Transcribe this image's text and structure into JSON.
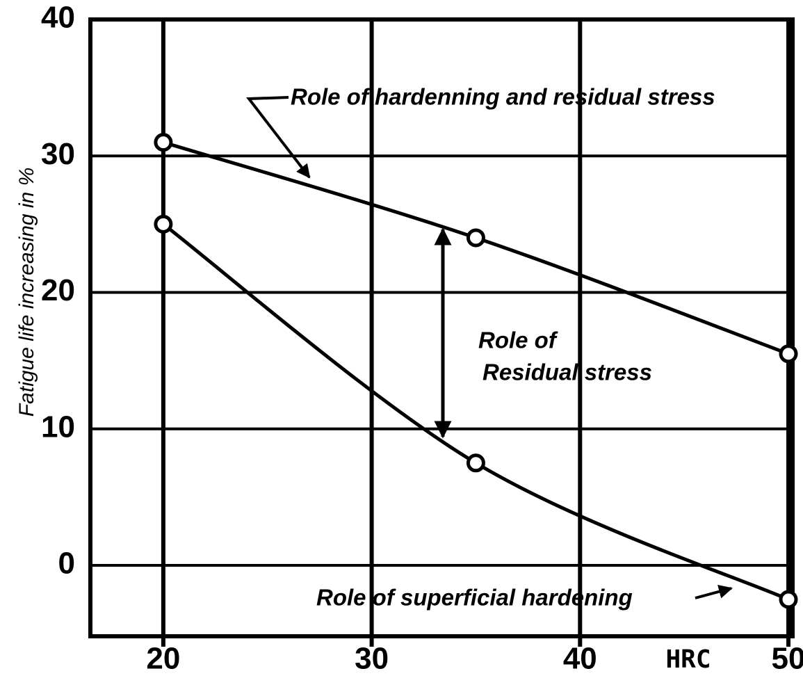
{
  "chart_data": {
    "type": "line",
    "ylabel": "Fatigue life increasing in %",
    "xlabel": "HRC",
    "x": [
      20,
      35,
      50
    ],
    "series": [
      {
        "color": "#000000",
        "values": [
          31,
          24,
          15.5
        ]
      },
      {
        "color": "#000000",
        "values": [
          25,
          7.5,
          -2.5
        ]
      }
    ],
    "xlim": [
      16.5,
      50.2
    ],
    "xticks": [
      20,
      30,
      40,
      50
    ],
    "ylim": [
      -5.2,
      40
    ],
    "yticks": [
      0,
      10,
      20,
      30,
      40
    ],
    "grid": true,
    "annotations": [
      "Role of hardenning and residual stress",
      "Role of",
      "Residual stress",
      "Role of superficial hardening"
    ]
  }
}
